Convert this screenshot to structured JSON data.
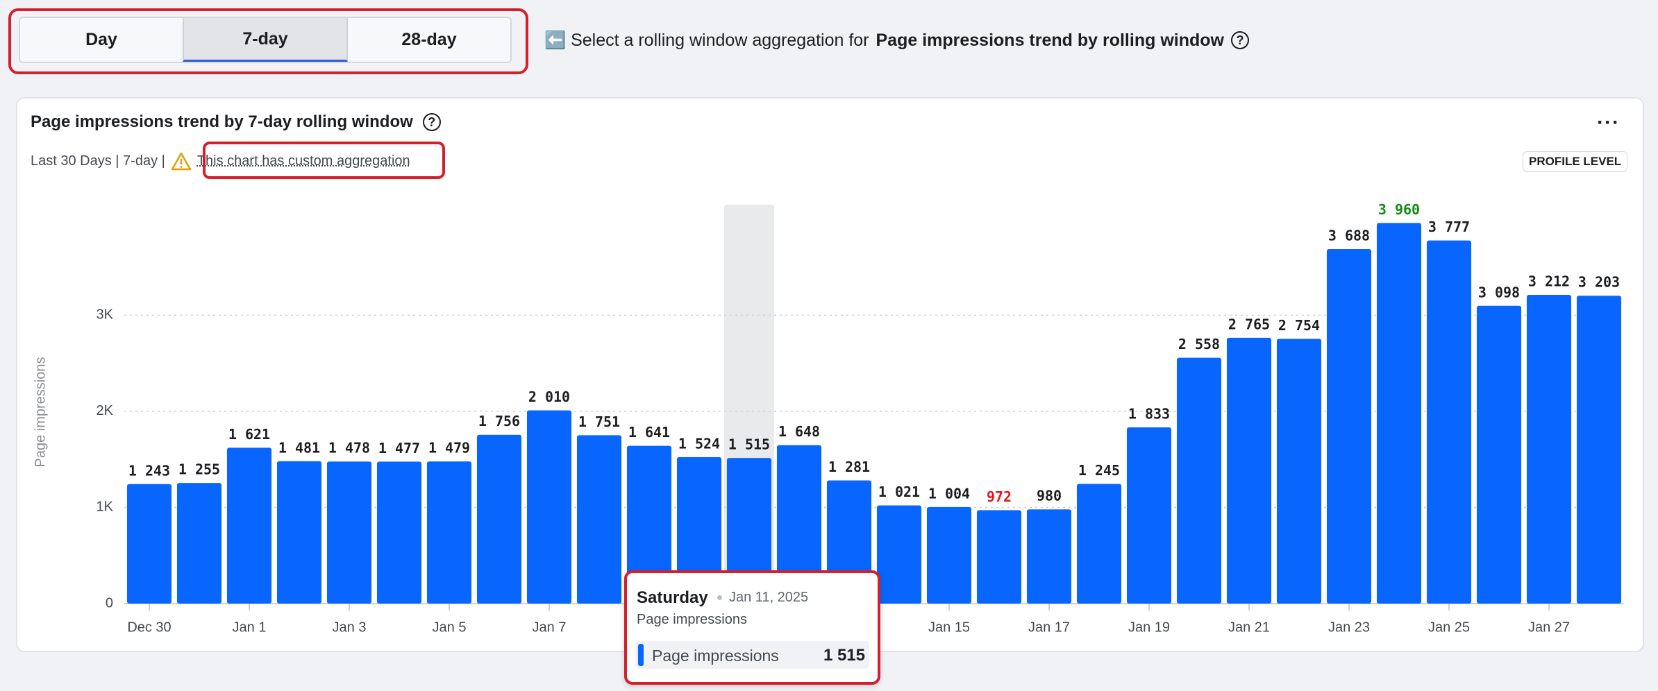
{
  "tabs": [
    "Day",
    "7-day",
    "28-day"
  ],
  "hint": {
    "text": "⬅️ Select a rolling window aggregation for",
    "target": "Page impressions trend by rolling window"
  },
  "card": {
    "meta": "Last 30 Days | 7-day |",
    "note": "This chart has custom aggregation",
    "badge": "PROFILE LEVEL"
  },
  "chart_data": {
    "type": "bar",
    "title": "Page impressions trend by 7-day rolling window",
    "y_label": "Page impressions",
    "categories": [
      "Dec 30",
      null,
      "Jan 1",
      null,
      "Jan 3",
      null,
      "Jan 5",
      null,
      "Jan 7",
      null,
      null,
      null,
      null,
      null,
      null,
      null,
      "Jan 15",
      null,
      "Jan 17",
      null,
      "Jan 19",
      null,
      "Jan 21",
      null,
      "Jan 23",
      null,
      "Jan 25",
      null,
      "Jan 27",
      null
    ],
    "values": [
      1243,
      1255,
      1621,
      1481,
      1478,
      1477,
      1479,
      1756,
      2010,
      1751,
      1641,
      1524,
      1515,
      1648,
      1281,
      1021,
      1004,
      972,
      980,
      1245,
      1833,
      2558,
      2765,
      2754,
      3688,
      3960,
      3777,
      3098,
      3212,
      3203
    ],
    "value_labels": [
      "1 243",
      "1 255",
      "1 621",
      "1 481",
      "1 478",
      "1 477",
      "1 479",
      "1 756",
      "2 010",
      "1 751",
      "1 641",
      "1 524",
      "1 515",
      "1 648",
      "1 281",
      "1 021",
      "1 004",
      "972",
      "980",
      "1 245",
      "1 833",
      "2 558",
      "2 765",
      "2 754",
      "3 688",
      "3 960",
      "3 777",
      "3 098",
      "3 212",
      "3 203"
    ],
    "color": "#0866ff",
    "min_label_color": "#e8141b",
    "max_label_color": "#138a14",
    "ylim": [
      0,
      4150
    ],
    "yticks": [
      0,
      {
        "value": 1000,
        "label": "1K"
      },
      {
        "value": 2000,
        "label": "2K"
      },
      {
        "value": 3000,
        "label": "3K"
      }
    ],
    "grid": true,
    "tooltip": {
      "day": "Saturday",
      "date": "Jan 11, 2025",
      "metric": "Page impressions",
      "series_name": "Page impressions",
      "value": 1515,
      "value_label": "1 515"
    }
  }
}
